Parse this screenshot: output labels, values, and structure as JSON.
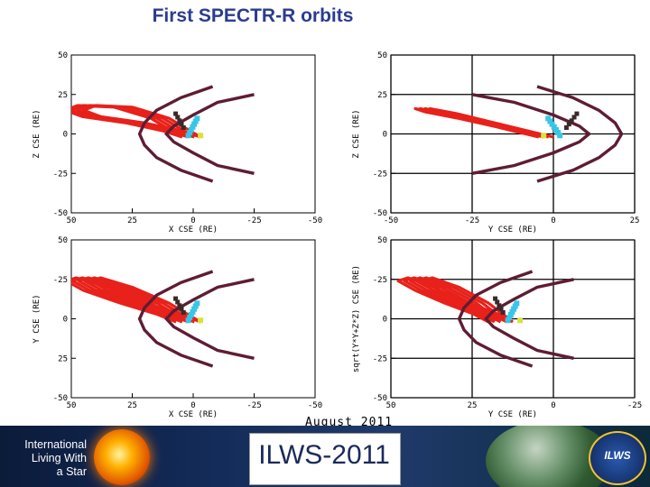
{
  "title": "First SPECTR-R orbits",
  "event": "August 2011",
  "footer": {
    "org_line1": "International",
    "org_line2": "Living With",
    "org_line3": "a Star",
    "conference": "ILWS-2011",
    "badge": "ILWS"
  },
  "colors": {
    "orbit": "#e8211a",
    "boundary": "#5e1d33",
    "points_dark": "#3a2a2a",
    "points_cyan": "#39c6e6",
    "points_yellow": "#d8e23a",
    "title": "#2b3d8f"
  },
  "chart_data": [
    {
      "type": "line",
      "panel": "top-left",
      "xlabel": "X CSE (RE)",
      "ylabel": "Z CSE (RE)",
      "x_ticks": [
        "50",
        "25",
        "0",
        "-25",
        "-50"
      ],
      "y_ticks": [
        "50",
        "25",
        "0",
        "-25",
        "-50"
      ],
      "xlim": [
        50,
        -50
      ],
      "ylim": [
        -50,
        50
      ],
      "grid": false,
      "series": [
        {
          "role": "orbits",
          "x": [
            -3,
            10,
            25,
            40,
            45,
            38,
            20,
            5,
            -3
          ],
          "y": [
            -2,
            10,
            17,
            18,
            15,
            11,
            7,
            2,
            -2
          ],
          "repeat": 4,
          "step_x": 2.5
        },
        {
          "role": "boundary",
          "x": [
            -25,
            -10,
            0,
            8,
            11,
            8,
            0,
            -10,
            -25
          ],
          "y": [
            25,
            20,
            12,
            5,
            0,
            -5,
            -12,
            -20,
            -25
          ]
        },
        {
          "role": "inner_boundary",
          "x": [
            -8,
            5,
            15,
            20,
            22,
            20,
            15,
            5,
            -8
          ],
          "y": [
            30,
            23,
            15,
            7,
            0,
            -7,
            -15,
            -23,
            -30
          ]
        }
      ]
    },
    {
      "type": "line",
      "panel": "top-right",
      "xlabel": "Y CSE (RE)",
      "ylabel": "Z CSE (RE)",
      "x_ticks": [
        "-50",
        "-25",
        "0",
        "25"
      ],
      "y_ticks": [
        "50",
        "25",
        "0",
        "-25",
        "-50"
      ],
      "xlim": [
        -50,
        25
      ],
      "ylim": [
        -50,
        50
      ],
      "grid": true,
      "series": [
        {
          "role": "orbits",
          "x": [
            0,
            -10,
            -20,
            -30,
            -38,
            -35,
            -25,
            -12,
            0
          ],
          "y": [
            -2,
            3,
            8,
            13,
            16,
            14,
            10,
            4,
            -2
          ],
          "repeat": 4,
          "step_x": -1.5
        },
        {
          "role": "boundary",
          "x": [
            -25,
            -12,
            0,
            8,
            11,
            8,
            0,
            -12,
            -25
          ],
          "y": [
            25,
            20,
            12,
            5,
            0,
            -5,
            -12,
            -20,
            -25
          ]
        },
        {
          "role": "inner_boundary",
          "x": [
            -5,
            6,
            14,
            19,
            21,
            19,
            14,
            6,
            -5
          ],
          "y": [
            30,
            23,
            15,
            7,
            0,
            -7,
            -15,
            -23,
            -30
          ]
        }
      ]
    },
    {
      "type": "line",
      "panel": "bottom-left",
      "xlabel": "X CSE (RE)",
      "ylabel": "Y CSE (RE)",
      "x_ticks": [
        "50",
        "25",
        "0",
        "-25",
        "-50"
      ],
      "y_ticks": [
        "50",
        "-25",
        "0",
        "25",
        "-50"
      ],
      "xlim": [
        50,
        -50
      ],
      "ylim": [
        -50,
        50
      ],
      "grid": false,
      "series": [
        {
          "role": "orbits",
          "x": [
            -3,
            10,
            25,
            38,
            42,
            35,
            20,
            5,
            -3
          ],
          "y": [
            -2,
            10,
            20,
            26,
            24,
            18,
            10,
            3,
            -2
          ],
          "repeat": 5,
          "step_x": 2.5
        },
        {
          "role": "boundary",
          "x": [
            -25,
            -10,
            0,
            8,
            11,
            8,
            0,
            -10,
            -25
          ],
          "y": [
            25,
            20,
            12,
            5,
            0,
            -5,
            -12,
            -20,
            -25
          ]
        },
        {
          "role": "inner_boundary",
          "x": [
            -8,
            5,
            15,
            20,
            22,
            20,
            15,
            5,
            -8
          ],
          "y": [
            30,
            23,
            15,
            7,
            0,
            -7,
            -15,
            -23,
            -30
          ]
        }
      ]
    },
    {
      "type": "line",
      "panel": "bottom-right",
      "xlabel": "Y CSE (RE)",
      "ylabel": "sqrt(Y*Y+Z*Z) CSE (RE)",
      "x_ticks": [
        "50",
        "25",
        "0",
        "-25"
      ],
      "y_ticks": [
        "50",
        "-25",
        "0",
        "-25",
        "-50"
      ],
      "xlim": [
        50,
        -50
      ],
      "ylim": [
        -50,
        50
      ],
      "grid": true,
      "series": [
        {
          "role": "orbits",
          "x": [
            0,
            10,
            22,
            33,
            37,
            30,
            18,
            6,
            0
          ],
          "y": [
            -2,
            10,
            20,
            26,
            24,
            18,
            10,
            3,
            -2
          ],
          "repeat": 5,
          "step_x": 2.5
        },
        {
          "role": "boundary",
          "x": [
            -25,
            -10,
            0,
            8,
            11,
            8,
            0,
            -10,
            -25
          ],
          "y": [
            25,
            20,
            12,
            5,
            0,
            -5,
            -12,
            -20,
            -25
          ]
        },
        {
          "role": "inner_boundary",
          "x": [
            -8,
            5,
            15,
            20,
            22,
            20,
            15,
            5,
            -8
          ],
          "y": [
            30,
            23,
            15,
            7,
            0,
            -7,
            -15,
            -23,
            -30
          ]
        }
      ]
    }
  ]
}
